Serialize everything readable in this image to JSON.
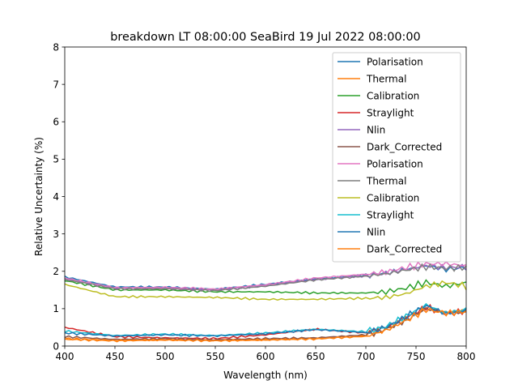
{
  "chart_data": {
    "type": "line",
    "title": "breakdown LT 08:00:00 SeaBird 19 Jul 2022 08:00:00",
    "xlabel": "Wavelength (nm)",
    "ylabel": "Relative Uncertainty (%)",
    "xlim": [
      400,
      800
    ],
    "ylim": [
      0,
      8
    ],
    "xticks": [
      400,
      450,
      500,
      550,
      600,
      650,
      700,
      750,
      800
    ],
    "yticks": [
      0,
      1,
      2,
      3,
      4,
      5,
      6,
      7,
      8
    ],
    "grid": false,
    "legend_position": "top-right",
    "series": [
      {
        "name": "Polarisation",
        "color": "#1f77b4",
        "x": [
          400,
          450,
          500,
          550,
          600,
          650,
          700,
          720,
          740,
          760,
          780,
          800
        ],
        "y": [
          1.85,
          1.58,
          1.58,
          1.52,
          1.65,
          1.8,
          1.9,
          1.95,
          2.05,
          2.15,
          2.05,
          2.1
        ]
      },
      {
        "name": "Thermal",
        "color": "#ff7f0e",
        "x": [
          400,
          450,
          500,
          550,
          600,
          650,
          700,
          720,
          740,
          760,
          780,
          800
        ],
        "y": [
          0.2,
          0.15,
          0.17,
          0.15,
          0.17,
          0.2,
          0.28,
          0.45,
          0.7,
          1.0,
          0.9,
          0.95
        ]
      },
      {
        "name": "Calibration",
        "color": "#2ca02c",
        "x": [
          400,
          450,
          500,
          550,
          600,
          650,
          700,
          720,
          740,
          760,
          780,
          800
        ],
        "y": [
          1.75,
          1.5,
          1.5,
          1.45,
          1.45,
          1.42,
          1.42,
          1.45,
          1.55,
          1.7,
          1.6,
          1.7
        ]
      },
      {
        "name": "Straylight",
        "color": "#d62728",
        "x": [
          400,
          450,
          500,
          550,
          600,
          650,
          700,
          720,
          740,
          760,
          780,
          800
        ],
        "y": [
          0.5,
          0.25,
          0.22,
          0.2,
          0.3,
          0.45,
          0.35,
          0.5,
          0.75,
          1.05,
          0.85,
          0.95
        ]
      },
      {
        "name": "Nlin",
        "color": "#9467bd",
        "x": [
          400,
          450,
          500,
          550,
          600,
          650,
          700,
          720,
          740,
          760,
          780,
          800
        ],
        "y": [
          1.8,
          1.55,
          1.55,
          1.5,
          1.62,
          1.78,
          1.88,
          1.95,
          2.05,
          2.15,
          2.1,
          2.12
        ]
      },
      {
        "name": "Dark_Corrected",
        "color": "#8c564b",
        "x": [
          400,
          450,
          500,
          550,
          600,
          650,
          700,
          720,
          740,
          760,
          780,
          800
        ],
        "y": [
          0.25,
          0.18,
          0.2,
          0.17,
          0.2,
          0.22,
          0.3,
          0.45,
          0.7,
          1.0,
          0.9,
          0.9
        ]
      },
      {
        "name": "Polarisation",
        "color": "#e377c2",
        "x": [
          400,
          450,
          500,
          550,
          600,
          650,
          700,
          720,
          740,
          760,
          780,
          800
        ],
        "y": [
          1.82,
          1.56,
          1.57,
          1.52,
          1.64,
          1.82,
          1.92,
          1.98,
          2.1,
          2.2,
          2.2,
          2.15
        ]
      },
      {
        "name": "Thermal",
        "color": "#7f7f7f",
        "x": [
          400,
          450,
          500,
          550,
          600,
          650,
          700,
          720,
          740,
          760,
          780,
          800
        ],
        "y": [
          1.78,
          1.53,
          1.53,
          1.48,
          1.6,
          1.77,
          1.87,
          1.93,
          2.03,
          2.12,
          2.08,
          2.1
        ]
      },
      {
        "name": "Calibration",
        "color": "#bcbd22",
        "x": [
          400,
          450,
          500,
          550,
          600,
          650,
          700,
          720,
          740,
          760,
          780,
          800
        ],
        "y": [
          1.65,
          1.32,
          1.32,
          1.3,
          1.25,
          1.25,
          1.28,
          1.3,
          1.4,
          1.6,
          1.7,
          1.6
        ]
      },
      {
        "name": "Straylight",
        "color": "#17becf",
        "x": [
          400,
          450,
          500,
          550,
          600,
          650,
          700,
          720,
          740,
          760,
          780,
          800
        ],
        "y": [
          0.4,
          0.28,
          0.32,
          0.28,
          0.35,
          0.45,
          0.38,
          0.52,
          0.8,
          1.1,
          0.88,
          0.98
        ]
      },
      {
        "name": "Nlin",
        "color": "#1f77b4",
        "x": [
          400,
          450,
          500,
          550,
          600,
          650,
          700,
          720,
          740,
          760,
          780,
          800
        ],
        "y": [
          0.35,
          0.27,
          0.3,
          0.27,
          0.33,
          0.44,
          0.36,
          0.5,
          0.78,
          1.08,
          0.86,
          0.96
        ]
      },
      {
        "name": "Dark_Corrected",
        "color": "#ff7f0e",
        "x": [
          400,
          450,
          500,
          550,
          600,
          650,
          700,
          720,
          740,
          760,
          780,
          800
        ],
        "y": [
          0.18,
          0.14,
          0.16,
          0.14,
          0.16,
          0.19,
          0.26,
          0.42,
          0.68,
          0.98,
          0.88,
          0.92
        ]
      }
    ]
  }
}
